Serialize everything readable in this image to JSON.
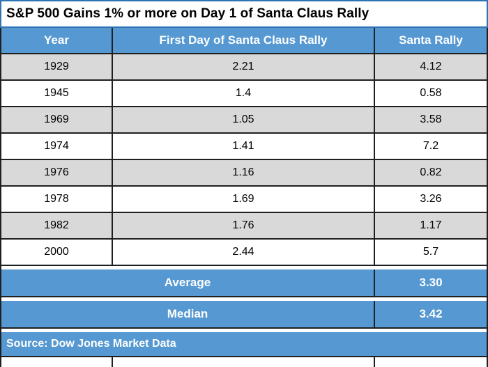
{
  "chart_data": {
    "type": "table",
    "title": "S&P 500 Gains 1% or more on Day 1 of Santa Claus Rally",
    "columns": [
      "Year",
      "First Day of Santa Claus Rally",
      "Santa Rally"
    ],
    "rows": [
      [
        "1929",
        "2.21",
        "4.12"
      ],
      [
        "1945",
        "1.4",
        "0.58"
      ],
      [
        "1969",
        "1.05",
        "3.58"
      ],
      [
        "1974",
        "1.41",
        "7.2"
      ],
      [
        "1976",
        "1.16",
        "0.82"
      ],
      [
        "1978",
        "1.69",
        "3.26"
      ],
      [
        "1982",
        "1.76",
        "1.17"
      ],
      [
        "2000",
        "2.44",
        "5.7"
      ]
    ],
    "summary_rows": [
      {
        "label": "Average",
        "value": "3.30"
      },
      {
        "label": "Median",
        "value": "3.42"
      }
    ],
    "source": "Source: Dow Jones Market Data",
    "layout": {
      "grid": "on",
      "header_position": "top",
      "row_striping": "gray-white"
    }
  },
  "colors": {
    "header_blue": "#5598D2",
    "row_gray": "#D9D9D9",
    "row_white": "#FFFFFF",
    "title_border": "#2E74B5",
    "grid_border": "#1F1F1F",
    "text_black": "#000000",
    "text_white": "#FFFFFF"
  }
}
